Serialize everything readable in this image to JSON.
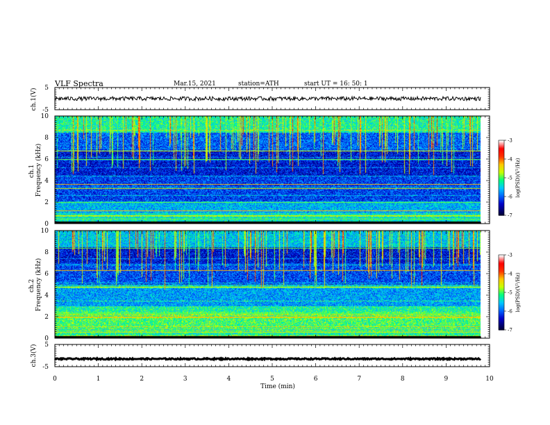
{
  "header": {
    "title": "VLF  Spectra",
    "date": "Mar.15, 2021",
    "station": "station=ATH",
    "start": "start  UT  =    16: 50: 1"
  },
  "chart_data": [
    {
      "type": "line",
      "ylabel": "ch.1(V)",
      "ylim": [
        -5,
        5
      ],
      "yticks": [
        "5",
        "-5"
      ],
      "x": [
        0,
        9.8
      ],
      "values": [
        0,
        0
      ],
      "color": "#000000"
    },
    {
      "type": "heatmap",
      "ylabel": "ch.1\nFrequency (kHz)",
      "ylim": [
        0,
        10
      ],
      "yticks": [
        "0",
        "2",
        "4",
        "6",
        "8",
        "10"
      ],
      "x_range": [
        0,
        9.8
      ],
      "colorbar": {
        "label": "log(PSD)(V²/Hz)",
        "ticks": [
          "-3",
          "-4",
          "-5",
          "-6",
          "-7"
        ],
        "range": [
          -7,
          -3
        ]
      }
    },
    {
      "type": "heatmap",
      "ylabel": "ch.2\nFrequency (kHz)",
      "ylim": [
        0,
        10
      ],
      "yticks": [
        "0",
        "2",
        "4",
        "6",
        "8",
        "10"
      ],
      "x_range": [
        0,
        9.8
      ],
      "colorbar": {
        "label": "log(PSD)(V²/Hz)",
        "ticks": [
          "-3",
          "-4",
          "-5",
          "-6",
          "-7"
        ],
        "range": [
          -7,
          -3
        ]
      }
    },
    {
      "type": "line",
      "ylabel": "ch.3(V)",
      "ylim": [
        -5,
        5
      ],
      "yticks": [
        "5",
        "-5"
      ],
      "x": [
        0,
        9.8
      ],
      "values": [
        -1.5,
        -1.5
      ],
      "color": "#000000"
    }
  ],
  "xaxis": {
    "label": "Time  (min)",
    "ticks": [
      "0",
      "1",
      "2",
      "3",
      "4",
      "5",
      "6",
      "7",
      "8",
      "9",
      "10"
    ],
    "range": [
      0,
      10
    ]
  },
  "colors": {
    "colormap": [
      "#000000",
      "#000060",
      "#0000c8",
      "#0064ff",
      "#00c8ff",
      "#00ff80",
      "#c8ff00",
      "#ffc800",
      "#ff3200",
      "#ff0000",
      "#ffffff"
    ]
  }
}
